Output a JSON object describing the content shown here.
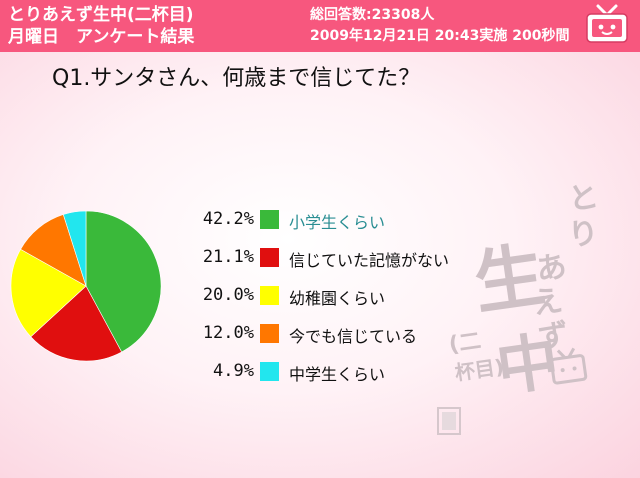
{
  "header": {
    "title_line1": "とりあえず生中(二杯目)",
    "title_line2": "月曜日　アンケート結果",
    "total_label": "総回答数:",
    "total_value": "23308人",
    "datetime_line": "2009年12月21日 20:43実施 200秒間"
  },
  "question": "Q1.サンタさん、何歳まで信じてた？",
  "watermark_text": "とりあえず生中(二杯目)",
  "chart_data": {
    "type": "pie",
    "slices": [
      {
        "label": "小学生くらい",
        "value": 42.2,
        "pct_text": "42.2%",
        "color": "#3ab93a",
        "label_color": "#2a8e93"
      },
      {
        "label": "信じていた記憶がない",
        "value": 21.1,
        "pct_text": "21.1%",
        "color": "#e00f0f",
        "label_color": "#111111"
      },
      {
        "label": "幼稚園くらい",
        "value": 20.0,
        "pct_text": "20.0%",
        "color": "#ffff00",
        "label_color": "#111111"
      },
      {
        "label": "今でも信じている",
        "value": 12.0,
        "pct_text": "12.0%",
        "color": "#ff7700",
        "label_color": "#111111"
      },
      {
        "label": "中学生くらい",
        "value": 4.9,
        "pct_text": "4.9%",
        "color": "#22e6ee",
        "label_color": "#111111"
      }
    ],
    "start": "12 o'clock",
    "direction": "clockwise",
    "legend_position": "right"
  }
}
